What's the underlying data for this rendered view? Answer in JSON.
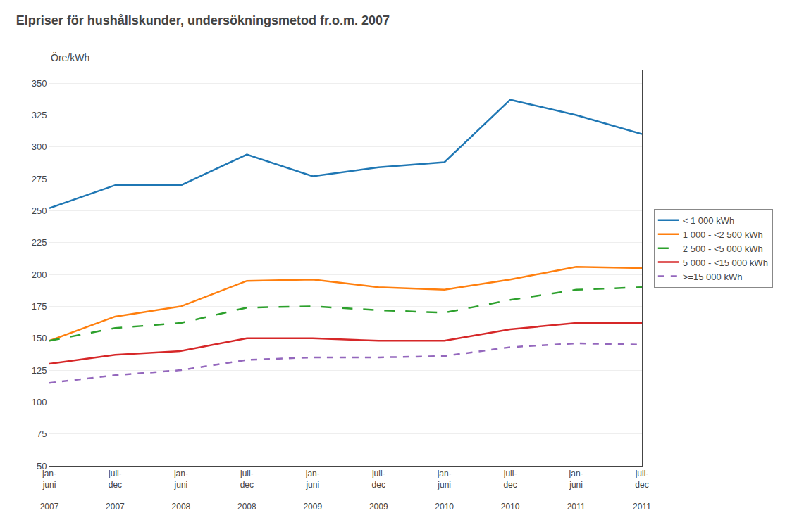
{
  "chart_data": {
    "type": "line",
    "title": "Elpriser för hushållskunder, undersökningsmetod fr.o.m. 2007",
    "ylabel": "Öre/kWh",
    "categories": [
      "jan-\njuni\n\n2007",
      "juli-\ndec\n\n2007",
      "jan-\njuni\n\n2008",
      "juli-\ndec\n\n2008",
      "jan-\njuni\n\n2009",
      "juli-\ndec\n\n2009",
      "jan-\njuni\n\n2010",
      "juli-\ndec\n\n2010",
      "jan-\njuni\n\n2011",
      "juli-\ndec\n\n2011"
    ],
    "series": [
      {
        "name": "< 1 000 kWh",
        "line_style": "solid",
        "values": [
          252,
          270,
          270,
          294,
          277,
          284,
          288,
          337,
          325,
          310
        ]
      },
      {
        "name": "1 000 - <2 500 kWh",
        "line_style": "solid",
        "values": [
          148,
          167,
          175,
          195,
          196,
          190,
          188,
          196,
          206,
          205
        ]
      },
      {
        "name": "2 500 - <5 000 kWh",
        "line_style": "longdash",
        "values": [
          148,
          158,
          162,
          174,
          175,
          172,
          170,
          180,
          188,
          190
        ]
      },
      {
        "name": "5 000 - <15 000 kWh",
        "line_style": "solid",
        "values": [
          130,
          137,
          140,
          150,
          150,
          148,
          148,
          157,
          162,
          162
        ]
      },
      {
        "name": ">=15 000 kWh",
        "line_style": "dashed",
        "values": [
          115,
          121,
          125,
          133,
          135,
          135,
          136,
          143,
          146,
          145
        ]
      }
    ],
    "ylim": [
      50,
      360
    ],
    "yticks": [
      50,
      75,
      100,
      125,
      150,
      175,
      200,
      225,
      250,
      275,
      300,
      325,
      350
    ],
    "grid": true,
    "legend": "right"
  }
}
